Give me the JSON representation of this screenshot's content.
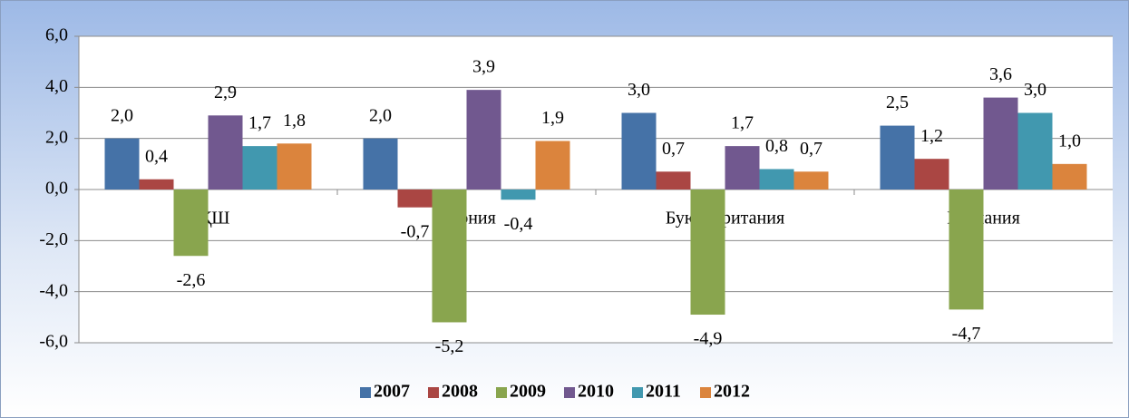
{
  "chart_data": {
    "type": "bar",
    "categories": [
      "АҚШ",
      "Япония",
      "Буюк Британия",
      "Германия"
    ],
    "series": [
      {
        "name": "2007",
        "color": "#4572a7",
        "values": [
          2.0,
          2.0,
          3.0,
          2.5
        ],
        "value_labels": [
          "2,0",
          "2,0",
          "3,0",
          "2,5"
        ]
      },
      {
        "name": "2008",
        "color": "#aa4643",
        "values": [
          0.4,
          -0.7,
          0.7,
          1.2
        ],
        "value_labels": [
          "0,4",
          "-0,7",
          "0,7",
          "1,2"
        ]
      },
      {
        "name": "2009",
        "color": "#89a54e",
        "values": [
          -2.6,
          -5.2,
          -4.9,
          -4.7
        ],
        "value_labels": [
          "-2,6",
          "-5,2",
          "-4,9",
          "-4,7"
        ]
      },
      {
        "name": "2010",
        "color": "#71588f",
        "values": [
          2.9,
          3.9,
          1.7,
          3.6
        ],
        "value_labels": [
          "2,9",
          "3,9",
          "1,7",
          "3,6"
        ]
      },
      {
        "name": "2011",
        "color": "#4198af",
        "values": [
          1.7,
          -0.4,
          0.8,
          3.0
        ],
        "value_labels": [
          "1,7",
          "-0,4",
          "0,8",
          "3,0"
        ]
      },
      {
        "name": "2012",
        "color": "#db843d",
        "values": [
          1.8,
          1.9,
          0.7,
          1.0
        ],
        "value_labels": [
          "1,8",
          "1,9",
          "0,7",
          "1,0"
        ]
      }
    ],
    "ylim": [
      -6,
      6
    ],
    "yticks": [
      {
        "value": -6,
        "label": "-6,0"
      },
      {
        "value": -4,
        "label": "-4,0"
      },
      {
        "value": -2,
        "label": "-2,0"
      },
      {
        "value": 0,
        "label": "0,0"
      },
      {
        "value": 2,
        "label": "2,0"
      },
      {
        "value": 4,
        "label": "4,0"
      },
      {
        "value": 6,
        "label": "6,0"
      }
    ],
    "grid": true,
    "legend": "bottom"
  }
}
